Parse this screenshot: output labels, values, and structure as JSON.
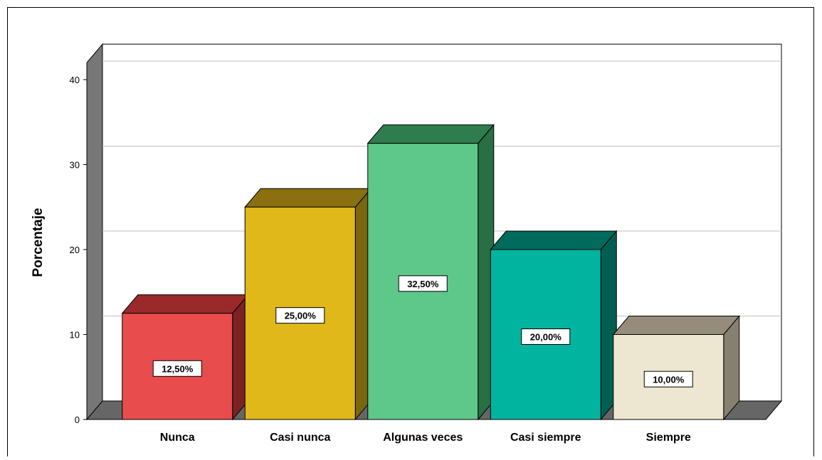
{
  "chart_data": {
    "type": "bar",
    "title": "",
    "xlabel": "",
    "ylabel": "Porcentaje",
    "ylim": [
      0,
      40
    ],
    "yticks": [
      0,
      10,
      20,
      30,
      40
    ],
    "grid": true,
    "style": "3d",
    "categories": [
      "Nunca",
      "Casi nunca",
      "Algunas veces",
      "Casi siempre",
      "Siempre"
    ],
    "values": [
      12.5,
      25.0,
      32.5,
      20.0,
      10.0
    ],
    "value_labels": [
      "12,50%",
      "25,00%",
      "32,50%",
      "20,00%",
      "10,00%"
    ],
    "colors": {
      "front": [
        "#e84c4c",
        "#e0b81a",
        "#5ec78a",
        "#00b4a0",
        "#ede6d0"
      ],
      "top": [
        "#9a2a2a",
        "#8a7010",
        "#2f7d4e",
        "#006a5c",
        "#958c7c"
      ],
      "side": [
        "#7c2222",
        "#7a6510",
        "#2a6e44",
        "#005f52",
        "#858070"
      ]
    }
  }
}
